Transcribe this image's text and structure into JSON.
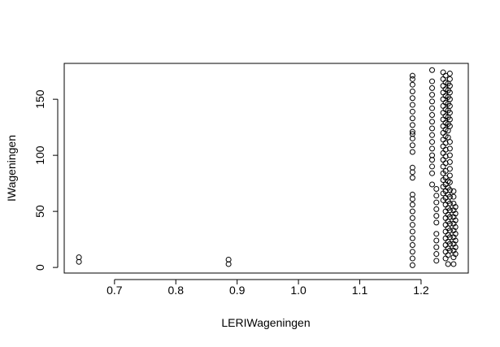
{
  "chart_data": {
    "type": "scatter",
    "title": "",
    "xlabel": "LERIWageningen",
    "ylabel": "IWageningen",
    "xlim": [
      0.618,
      1.277
    ],
    "ylim": [
      -5,
      182
    ],
    "x_ticks": [
      0.7,
      0.8,
      0.9,
      1.0,
      1.1,
      1.2
    ],
    "x_tick_labels": [
      "0.7",
      "0.8",
      "0.9",
      "1.0",
      "1.1",
      "1.2"
    ],
    "y_ticks": [
      0,
      50,
      100,
      150
    ],
    "y_tick_labels": [
      "0",
      "50",
      "100",
      "150"
    ],
    "grid": false,
    "marker": "open-circle",
    "point_color": "#000000",
    "series": [
      {
        "points": [
          {
            "x": 0.642,
            "y": 5
          },
          {
            "x": 0.642,
            "y": 9
          },
          {
            "x": 0.886,
            "y": 3
          },
          {
            "x": 0.886,
            "y": 7
          },
          {
            "x": 1.186,
            "y": 2
          },
          {
            "x": 1.186,
            "y": 8
          },
          {
            "x": 1.186,
            "y": 14
          },
          {
            "x": 1.186,
            "y": 20
          },
          {
            "x": 1.186,
            "y": 26
          },
          {
            "x": 1.186,
            "y": 32
          },
          {
            "x": 1.186,
            "y": 38
          },
          {
            "x": 1.186,
            "y": 44
          },
          {
            "x": 1.186,
            "y": 50
          },
          {
            "x": 1.186,
            "y": 56
          },
          {
            "x": 1.186,
            "y": 61
          },
          {
            "x": 1.186,
            "y": 65
          },
          {
            "x": 1.186,
            "y": 80
          },
          {
            "x": 1.186,
            "y": 85
          },
          {
            "x": 1.186,
            "y": 89
          },
          {
            "x": 1.186,
            "y": 103
          },
          {
            "x": 1.186,
            "y": 109
          },
          {
            "x": 1.186,
            "y": 115
          },
          {
            "x": 1.186,
            "y": 119
          },
          {
            "x": 1.186,
            "y": 121
          },
          {
            "x": 1.186,
            "y": 127
          },
          {
            "x": 1.186,
            "y": 133
          },
          {
            "x": 1.186,
            "y": 139
          },
          {
            "x": 1.186,
            "y": 145
          },
          {
            "x": 1.186,
            "y": 151
          },
          {
            "x": 1.186,
            "y": 157
          },
          {
            "x": 1.186,
            "y": 163
          },
          {
            "x": 1.186,
            "y": 168
          },
          {
            "x": 1.186,
            "y": 171
          },
          {
            "x": 1.218,
            "y": 74
          },
          {
            "x": 1.218,
            "y": 84
          },
          {
            "x": 1.218,
            "y": 90
          },
          {
            "x": 1.218,
            "y": 96
          },
          {
            "x": 1.218,
            "y": 100
          },
          {
            "x": 1.218,
            "y": 106
          },
          {
            "x": 1.218,
            "y": 112
          },
          {
            "x": 1.218,
            "y": 118
          },
          {
            "x": 1.218,
            "y": 124
          },
          {
            "x": 1.218,
            "y": 130
          },
          {
            "x": 1.218,
            "y": 136
          },
          {
            "x": 1.218,
            "y": 142
          },
          {
            "x": 1.218,
            "y": 148
          },
          {
            "x": 1.218,
            "y": 154
          },
          {
            "x": 1.218,
            "y": 160
          },
          {
            "x": 1.218,
            "y": 166
          },
          {
            "x": 1.218,
            "y": 176
          },
          {
            "x": 1.225,
            "y": 6
          },
          {
            "x": 1.225,
            "y": 12
          },
          {
            "x": 1.225,
            "y": 18
          },
          {
            "x": 1.225,
            "y": 24
          },
          {
            "x": 1.225,
            "y": 30
          },
          {
            "x": 1.225,
            "y": 40
          },
          {
            "x": 1.225,
            "y": 46
          },
          {
            "x": 1.225,
            "y": 52
          },
          {
            "x": 1.225,
            "y": 58
          },
          {
            "x": 1.225,
            "y": 64
          },
          {
            "x": 1.225,
            "y": 70
          },
          {
            "x": 1.236,
            "y": 60
          },
          {
            "x": 1.236,
            "y": 66
          },
          {
            "x": 1.236,
            "y": 72
          },
          {
            "x": 1.236,
            "y": 78
          },
          {
            "x": 1.236,
            "y": 84
          },
          {
            "x": 1.236,
            "y": 90
          },
          {
            "x": 1.236,
            "y": 96
          },
          {
            "x": 1.236,
            "y": 102
          },
          {
            "x": 1.236,
            "y": 108
          },
          {
            "x": 1.236,
            "y": 114
          },
          {
            "x": 1.236,
            "y": 120
          },
          {
            "x": 1.236,
            "y": 126
          },
          {
            "x": 1.236,
            "y": 132
          },
          {
            "x": 1.236,
            "y": 138
          },
          {
            "x": 1.236,
            "y": 144
          },
          {
            "x": 1.236,
            "y": 150
          },
          {
            "x": 1.236,
            "y": 156
          },
          {
            "x": 1.236,
            "y": 162
          },
          {
            "x": 1.236,
            "y": 168
          },
          {
            "x": 1.236,
            "y": 174
          },
          {
            "x": 1.24,
            "y": 8
          },
          {
            "x": 1.24,
            "y": 14
          },
          {
            "x": 1.24,
            "y": 20
          },
          {
            "x": 1.24,
            "y": 26
          },
          {
            "x": 1.24,
            "y": 32
          },
          {
            "x": 1.24,
            "y": 38
          },
          {
            "x": 1.24,
            "y": 44
          },
          {
            "x": 1.24,
            "y": 50
          },
          {
            "x": 1.24,
            "y": 56
          },
          {
            "x": 1.24,
            "y": 62
          },
          {
            "x": 1.24,
            "y": 68
          },
          {
            "x": 1.24,
            "y": 74
          },
          {
            "x": 1.24,
            "y": 80
          },
          {
            "x": 1.24,
            "y": 86
          },
          {
            "x": 1.24,
            "y": 93
          },
          {
            "x": 1.24,
            "y": 99
          },
          {
            "x": 1.24,
            "y": 105
          },
          {
            "x": 1.24,
            "y": 111
          },
          {
            "x": 1.24,
            "y": 117
          },
          {
            "x": 1.24,
            "y": 123
          },
          {
            "x": 1.24,
            "y": 129
          },
          {
            "x": 1.24,
            "y": 135
          },
          {
            "x": 1.24,
            "y": 141
          },
          {
            "x": 1.24,
            "y": 147
          },
          {
            "x": 1.24,
            "y": 153
          },
          {
            "x": 1.24,
            "y": 159
          },
          {
            "x": 1.24,
            "y": 165
          },
          {
            "x": 1.24,
            "y": 171
          },
          {
            "x": 1.244,
            "y": 3
          },
          {
            "x": 1.244,
            "y": 11
          },
          {
            "x": 1.244,
            "y": 17
          },
          {
            "x": 1.244,
            "y": 23
          },
          {
            "x": 1.244,
            "y": 29
          },
          {
            "x": 1.244,
            "y": 35
          },
          {
            "x": 1.244,
            "y": 41
          },
          {
            "x": 1.244,
            "y": 47
          },
          {
            "x": 1.244,
            "y": 53
          },
          {
            "x": 1.244,
            "y": 59
          },
          {
            "x": 1.244,
            "y": 65
          },
          {
            "x": 1.244,
            "y": 71
          },
          {
            "x": 1.244,
            "y": 77
          },
          {
            "x": 1.244,
            "y": 116
          },
          {
            "x": 1.244,
            "y": 122
          },
          {
            "x": 1.244,
            "y": 128
          },
          {
            "x": 1.244,
            "y": 134
          },
          {
            "x": 1.244,
            "y": 140
          },
          {
            "x": 1.244,
            "y": 146
          },
          {
            "x": 1.244,
            "y": 152
          },
          {
            "x": 1.244,
            "y": 158
          },
          {
            "x": 1.244,
            "y": 164
          },
          {
            "x": 1.247,
            "y": 15
          },
          {
            "x": 1.247,
            "y": 21
          },
          {
            "x": 1.247,
            "y": 27
          },
          {
            "x": 1.247,
            "y": 33
          },
          {
            "x": 1.247,
            "y": 39
          },
          {
            "x": 1.247,
            "y": 45
          },
          {
            "x": 1.247,
            "y": 51
          },
          {
            "x": 1.247,
            "y": 57
          },
          {
            "x": 1.247,
            "y": 63
          },
          {
            "x": 1.247,
            "y": 69
          },
          {
            "x": 1.247,
            "y": 76
          },
          {
            "x": 1.247,
            "y": 82
          },
          {
            "x": 1.247,
            "y": 88
          },
          {
            "x": 1.247,
            "y": 94
          },
          {
            "x": 1.247,
            "y": 100
          },
          {
            "x": 1.247,
            "y": 106
          },
          {
            "x": 1.247,
            "y": 112
          },
          {
            "x": 1.247,
            "y": 126
          },
          {
            "x": 1.247,
            "y": 132
          },
          {
            "x": 1.247,
            "y": 138
          },
          {
            "x": 1.247,
            "y": 144
          },
          {
            "x": 1.247,
            "y": 150
          },
          {
            "x": 1.247,
            "y": 156
          },
          {
            "x": 1.247,
            "y": 162
          },
          {
            "x": 1.247,
            "y": 168
          },
          {
            "x": 1.247,
            "y": 173
          },
          {
            "x": 1.253,
            "y": 3
          },
          {
            "x": 1.253,
            "y": 9
          },
          {
            "x": 1.253,
            "y": 15
          },
          {
            "x": 1.253,
            "y": 21
          },
          {
            "x": 1.253,
            "y": 27
          },
          {
            "x": 1.253,
            "y": 33
          },
          {
            "x": 1.253,
            "y": 39
          },
          {
            "x": 1.253,
            "y": 45
          },
          {
            "x": 1.253,
            "y": 51
          },
          {
            "x": 1.253,
            "y": 57
          },
          {
            "x": 1.253,
            "y": 63
          },
          {
            "x": 1.253,
            "y": 68
          },
          {
            "x": 1.256,
            "y": 12
          },
          {
            "x": 1.256,
            "y": 18
          },
          {
            "x": 1.256,
            "y": 24
          },
          {
            "x": 1.256,
            "y": 30
          },
          {
            "x": 1.256,
            "y": 36
          },
          {
            "x": 1.256,
            "y": 42
          },
          {
            "x": 1.256,
            "y": 48
          },
          {
            "x": 1.256,
            "y": 54
          }
        ]
      }
    ]
  }
}
